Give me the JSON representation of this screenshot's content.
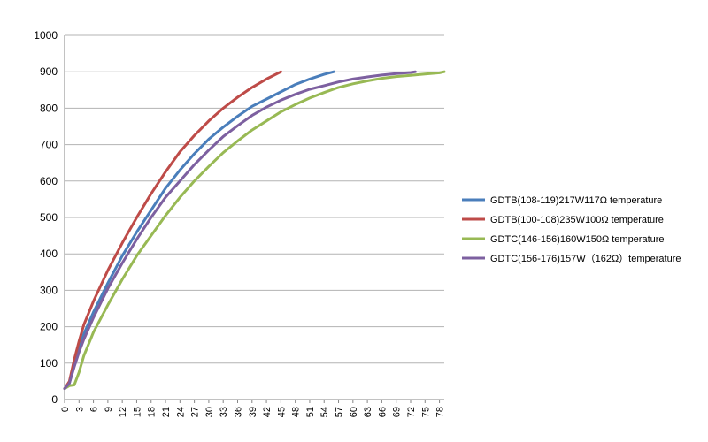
{
  "chart_data": {
    "type": "line",
    "title": "",
    "xlabel": "",
    "ylabel": "",
    "xlim": [
      0,
      79
    ],
    "ylim": [
      0,
      1000
    ],
    "grid": "horizontal",
    "legend_position": "right",
    "y_ticks": [
      "0",
      "100",
      "200",
      "300",
      "400",
      "500",
      "600",
      "700",
      "800",
      "900",
      "1000"
    ],
    "x_ticks": [
      "0",
      "3",
      "6",
      "9",
      "12",
      "15",
      "18",
      "21",
      "24",
      "27",
      "30",
      "33",
      "36",
      "39",
      "42",
      "45",
      "48",
      "51",
      "54",
      "57",
      "60",
      "63",
      "66",
      "69",
      "72",
      "75",
      "78"
    ],
    "x_tick_values": [
      0,
      3,
      6,
      9,
      12,
      15,
      18,
      21,
      24,
      27,
      30,
      33,
      36,
      39,
      42,
      45,
      48,
      51,
      54,
      57,
      60,
      63,
      66,
      69,
      72,
      75,
      78
    ],
    "series": [
      {
        "name": "GDTB(108-119)217W117Ω temperature",
        "color": "#4a7ebb",
        "x": [
          0,
          1,
          2,
          3,
          4,
          6,
          9,
          12,
          15,
          18,
          21,
          24,
          27,
          30,
          33,
          36,
          39,
          42,
          45,
          48,
          51,
          54,
          56
        ],
        "y": [
          30,
          45,
          95,
          140,
          180,
          240,
          320,
          395,
          460,
          520,
          580,
          630,
          675,
          715,
          748,
          778,
          805,
          825,
          845,
          865,
          880,
          893,
          900
        ]
      },
      {
        "name": "GDTB(100-108)235W100Ω temperature",
        "color": "#be4b48",
        "x": [
          0,
          1,
          2,
          3,
          4,
          6,
          9,
          12,
          15,
          18,
          21,
          24,
          27,
          30,
          33,
          36,
          39,
          42,
          45
        ],
        "y": [
          30,
          50,
          110,
          160,
          205,
          270,
          355,
          430,
          500,
          565,
          625,
          680,
          725,
          765,
          800,
          830,
          857,
          880,
          900
        ]
      },
      {
        "name": "GDTC(146-156)160W150Ω temperature",
        "color": "#98b954",
        "x": [
          0,
          1,
          2,
          3,
          4,
          6,
          9,
          12,
          15,
          18,
          21,
          24,
          27,
          30,
          33,
          36,
          39,
          42,
          45,
          48,
          51,
          54,
          57,
          60,
          63,
          66,
          69,
          72,
          75,
          78,
          79
        ],
        "y": [
          30,
          38,
          40,
          75,
          120,
          185,
          260,
          330,
          395,
          450,
          505,
          555,
          600,
          640,
          678,
          710,
          740,
          765,
          790,
          810,
          828,
          843,
          857,
          867,
          875,
          882,
          887,
          890,
          894,
          897,
          900
        ]
      },
      {
        "name": "GDTC(156-176)157W（162Ω）temperature",
        "color": "#7d60a0",
        "x": [
          0,
          1,
          2,
          3,
          4,
          6,
          9,
          12,
          15,
          18,
          21,
          24,
          27,
          30,
          33,
          36,
          39,
          42,
          45,
          48,
          51,
          54,
          57,
          60,
          63,
          66,
          69,
          72,
          73
        ],
        "y": [
          30,
          45,
          90,
          130,
          165,
          225,
          305,
          375,
          440,
          500,
          555,
          600,
          645,
          685,
          722,
          752,
          780,
          803,
          822,
          838,
          852,
          862,
          872,
          880,
          886,
          891,
          895,
          898,
          900
        ]
      }
    ]
  }
}
